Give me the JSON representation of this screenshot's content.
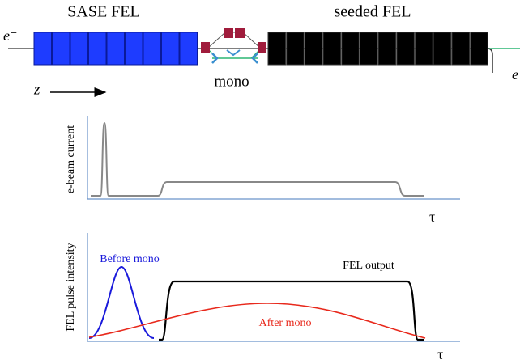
{
  "beamline": {
    "sase_label": "SASE FEL",
    "seeded_label": "seeded FEL",
    "electron_in": "e⁻",
    "electron_out": "e",
    "mono_label": "mono",
    "z_label": "z"
  },
  "current_plot": {
    "y_label": "e-beam current",
    "x_label": "τ"
  },
  "intensity_plot": {
    "y_label": "FEL pulse intensity",
    "x_label": "τ",
    "before_mono": "Before mono",
    "fel_output": "FEL output",
    "after_mono": "After mono"
  }
}
